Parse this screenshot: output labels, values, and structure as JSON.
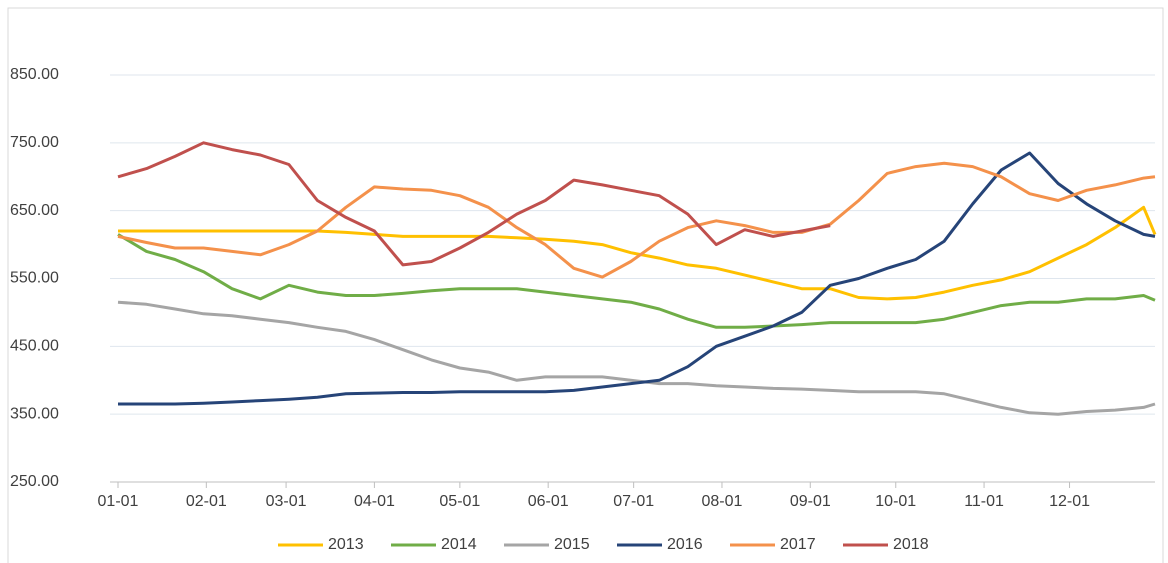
{
  "chart_data": {
    "type": "line",
    "x": [
      0,
      10,
      20,
      30,
      40,
      50,
      60,
      70,
      80,
      90,
      100,
      110,
      120,
      130,
      140,
      150,
      160,
      170,
      180,
      190,
      200,
      210,
      220,
      230,
      240,
      250,
      260,
      270,
      280,
      290,
      300,
      310,
      320,
      330,
      340,
      350,
      360,
      364
    ],
    "xlim": [
      0,
      364
    ],
    "xticks": [
      {
        "value": 0,
        "label": "01-01"
      },
      {
        "value": 31,
        "label": "02-01"
      },
      {
        "value": 59,
        "label": "03-01"
      },
      {
        "value": 90,
        "label": "04-01"
      },
      {
        "value": 120,
        "label": "05-01"
      },
      {
        "value": 151,
        "label": "06-01"
      },
      {
        "value": 181,
        "label": "07-01"
      },
      {
        "value": 212,
        "label": "08-01"
      },
      {
        "value": 243,
        "label": "09-01"
      },
      {
        "value": 273,
        "label": "10-01"
      },
      {
        "value": 304,
        "label": "11-01"
      },
      {
        "value": 334,
        "label": "12-01"
      }
    ],
    "ylim": [
      250,
      850
    ],
    "yticks": [
      {
        "value": 250,
        "label": "250.00"
      },
      {
        "value": 350,
        "label": "350.00"
      },
      {
        "value": 450,
        "label": "450.00"
      },
      {
        "value": 550,
        "label": "550.00"
      },
      {
        "value": 650,
        "label": "650.00"
      },
      {
        "value": 750,
        "label": "750.00"
      },
      {
        "value": 850,
        "label": "850.00"
      }
    ],
    "grid": true,
    "legend": "bottom",
    "series": [
      {
        "name": "2013",
        "color": "#ffc000",
        "values": [
          620,
          620,
          620,
          620,
          620,
          620,
          620,
          620,
          618,
          615,
          612,
          612,
          612,
          612,
          610,
          608,
          605,
          600,
          588,
          580,
          570,
          565,
          555,
          545,
          535,
          535,
          522,
          520,
          522,
          530,
          540,
          548,
          560,
          580,
          600,
          625,
          655,
          615
        ]
      },
      {
        "name": "2014",
        "color": "#70ad47",
        "values": [
          615,
          590,
          578,
          560,
          535,
          520,
          540,
          530,
          525,
          525,
          528,
          532,
          535,
          535,
          535,
          530,
          525,
          520,
          515,
          505,
          490,
          478,
          478,
          480,
          482,
          485,
          485,
          485,
          485,
          490,
          500,
          510,
          515,
          515,
          520,
          520,
          525,
          518
        ]
      },
      {
        "name": "2015",
        "color": "#a5a5a5",
        "values": [
          515,
          512,
          505,
          498,
          495,
          490,
          485,
          478,
          472,
          460,
          445,
          430,
          418,
          412,
          400,
          405,
          405,
          405,
          400,
          395,
          395,
          392,
          390,
          388,
          387,
          385,
          383,
          383,
          383,
          380,
          370,
          360,
          352,
          350,
          354,
          356,
          360,
          365
        ]
      },
      {
        "name": "2016",
        "color": "#264478",
        "values": [
          365,
          365,
          365,
          366,
          368,
          370,
          372,
          375,
          380,
          381,
          382,
          382,
          383,
          383,
          383,
          383,
          385,
          390,
          395,
          400,
          420,
          450,
          465,
          480,
          500,
          540,
          550,
          565,
          578,
          605,
          660,
          710,
          735,
          690,
          660,
          635,
          615,
          612
        ]
      },
      {
        "name": "2017",
        "color": "#f4914b",
        "values": [
          612,
          603,
          595,
          595,
          590,
          585,
          600,
          620,
          655,
          685,
          682,
          680,
          672,
          655,
          625,
          600,
          565,
          552,
          575,
          605,
          625,
          635,
          628,
          618,
          618,
          630,
          665,
          705,
          715,
          720,
          715,
          700,
          675,
          665,
          680,
          688,
          698,
          700
        ]
      },
      {
        "name": "2018",
        "color": "#c0504d",
        "values": [
          700,
          712,
          730,
          750,
          740,
          732,
          718,
          665,
          640,
          620,
          570,
          575,
          595,
          618,
          645,
          665,
          695,
          688,
          680,
          672,
          645,
          600,
          622,
          612,
          620,
          628,
          null,
          null,
          null,
          null,
          null,
          null,
          null,
          null,
          null,
          null,
          null,
          null
        ]
      }
    ]
  }
}
